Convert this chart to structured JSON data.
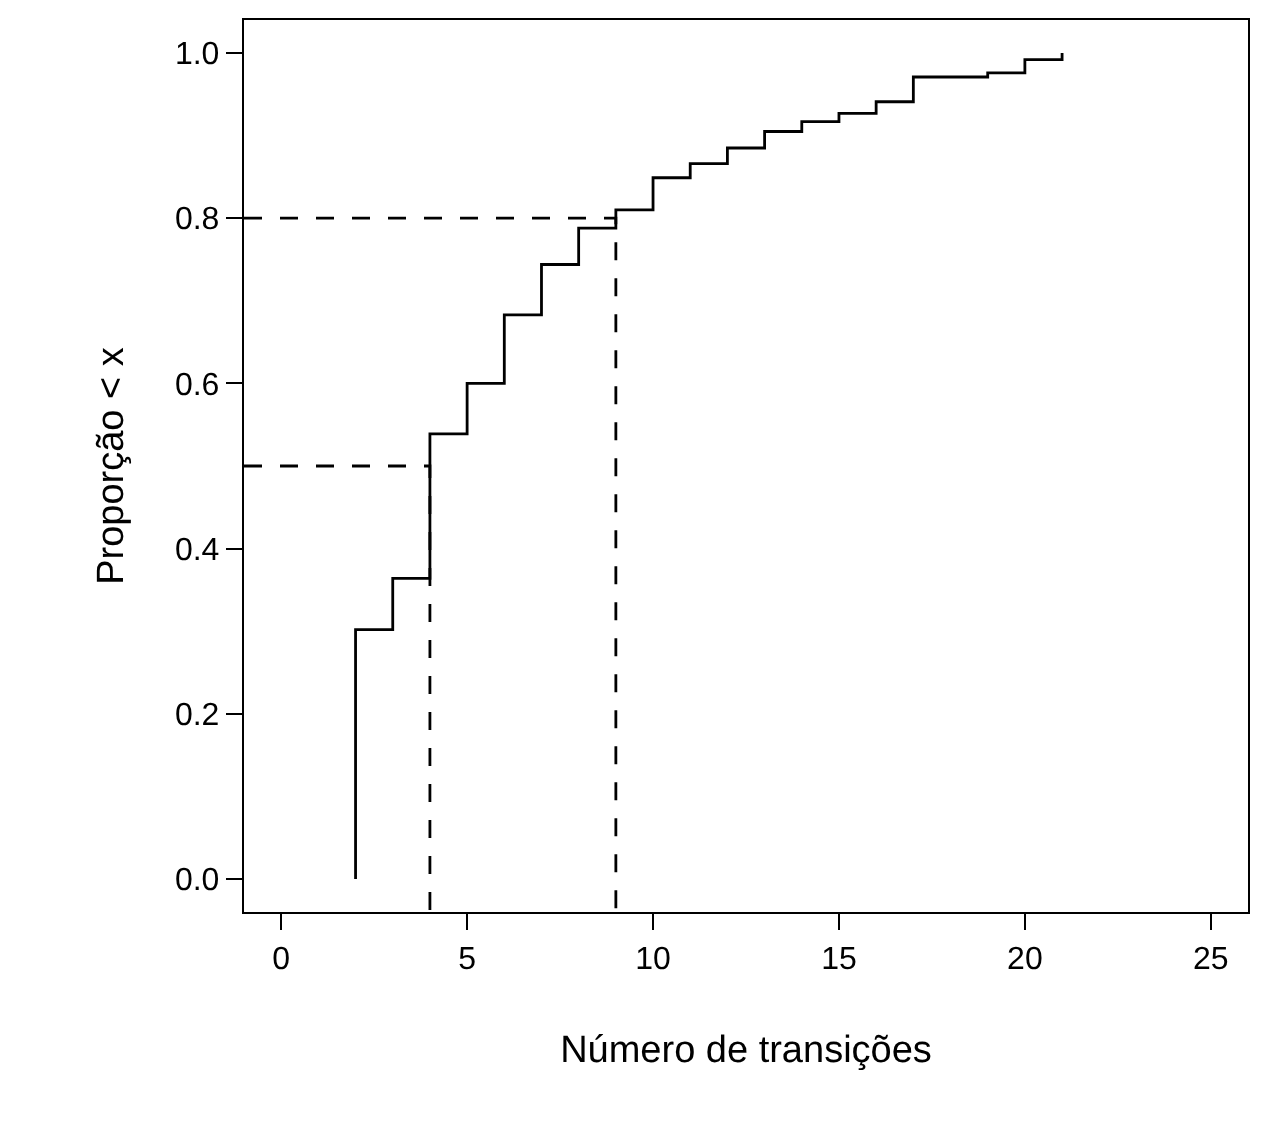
{
  "chart_data": {
    "type": "step",
    "xlabel": "Número de transições",
    "ylabel": "Proporção < x",
    "xlim": [
      -1,
      26
    ],
    "ylim": [
      -0.04,
      1.04
    ],
    "xticks": [
      0,
      5,
      10,
      15,
      20,
      25
    ],
    "yticks": [
      {
        "value": 0,
        "label": "0.0"
      },
      {
        "value": 0.2,
        "label": "0.2"
      },
      {
        "value": 0.4,
        "label": "0.4"
      },
      {
        "value": 0.6,
        "label": "0.6"
      },
      {
        "value": 0.8,
        "label": "0.8"
      },
      {
        "value": 1,
        "label": "1.0"
      }
    ],
    "marker": "none",
    "series": [
      {
        "color": "#000000",
        "line_style": "solid",
        "x": [
          2,
          2,
          3,
          4,
          5,
          6,
          7,
          8,
          9,
          10,
          11,
          12,
          13,
          14,
          15,
          16,
          17,
          18,
          19,
          20,
          21
        ],
        "values": [
          0,
          0.302,
          0.364,
          0.539,
          0.6,
          0.683,
          0.744,
          0.788,
          0.81,
          0.849,
          0.866,
          0.885,
          0.905,
          0.917,
          0.927,
          0.941,
          0.971,
          0.971,
          0.976,
          0.992,
          1.0
        ]
      },
      {
        "type": "line",
        "color": "#000000",
        "line_style": "dashed",
        "x": [
          -1,
          4,
          4
        ],
        "values": [
          0.5,
          0.5,
          -0.04
        ]
      },
      {
        "type": "line",
        "color": "#000000",
        "line_style": "dashed",
        "x": [
          -1,
          9,
          9
        ],
        "values": [
          0.8,
          0.8,
          -0.04
        ]
      }
    ]
  }
}
